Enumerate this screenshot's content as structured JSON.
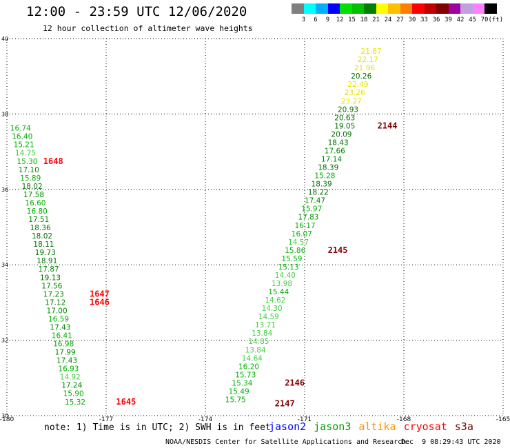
{
  "header": {
    "title": "12:00 - 23:59 UTC 12/06/2020",
    "subtitle": "12 hour collection of altimeter wave heights"
  },
  "colorbar": {
    "colors": [
      "#7f7f7f",
      "#00ffff",
      "#00b0ff",
      "#0000ff",
      "#00e000",
      "#00c000",
      "#008000",
      "#ffff00",
      "#ffc000",
      "#ff8000",
      "#ff0000",
      "#c00000",
      "#800000",
      "#a000a0",
      "#c0a0e0",
      "#ff80ff",
      "#000000"
    ],
    "labels": [
      "3",
      "6",
      "9",
      "12",
      "15",
      "18",
      "21",
      "24",
      "27",
      "30",
      "33",
      "36",
      "39",
      "42",
      "45",
      "70"
    ],
    "unit": "(ft)"
  },
  "chart_data": {
    "type": "scatter",
    "xlim": [
      -180,
      -165
    ],
    "ylim": [
      30,
      40
    ],
    "x_ticks": [
      "-180",
      "-177",
      "-174",
      "-171",
      "-168",
      "-165"
    ],
    "y_ticks": [
      "30",
      "32",
      "34",
      "36",
      "38",
      "40"
    ],
    "grid": true,
    "points": [
      {
        "x": -169.3,
        "y": 39.67,
        "v": "21.87",
        "c": "#e8e000"
      },
      {
        "x": -169.4,
        "y": 39.45,
        "v": "22.17",
        "c": "#e8e000"
      },
      {
        "x": -169.5,
        "y": 39.23,
        "v": "21.96",
        "c": "#e8e000"
      },
      {
        "x": -169.6,
        "y": 39.01,
        "v": "20.26",
        "c": "#007000"
      },
      {
        "x": -169.7,
        "y": 38.79,
        "v": "22.49",
        "c": "#e8e000"
      },
      {
        "x": -169.8,
        "y": 38.57,
        "v": "23.26",
        "c": "#e8e000"
      },
      {
        "x": -169.9,
        "y": 38.35,
        "v": "23.27",
        "c": "#e8e000"
      },
      {
        "x": -170.0,
        "y": 38.13,
        "v": "20.93",
        "c": "#007000"
      },
      {
        "x": -170.1,
        "y": 37.91,
        "v": "20.63",
        "c": "#007000"
      },
      {
        "x": -170.1,
        "y": 37.69,
        "v": "19.05",
        "c": "#007000"
      },
      {
        "x": -170.2,
        "y": 37.47,
        "v": "20.09",
        "c": "#007000"
      },
      {
        "x": -170.3,
        "y": 37.25,
        "v": "18.43",
        "c": "#007000"
      },
      {
        "x": -170.4,
        "y": 37.03,
        "v": "17.66",
        "c": "#008800"
      },
      {
        "x": -170.5,
        "y": 36.81,
        "v": "17.14",
        "c": "#008800"
      },
      {
        "x": -170.6,
        "y": 36.59,
        "v": "18.39",
        "c": "#007000"
      },
      {
        "x": -170.7,
        "y": 36.37,
        "v": "15.28",
        "c": "#00b000"
      },
      {
        "x": -170.8,
        "y": 36.15,
        "v": "18.39",
        "c": "#007000"
      },
      {
        "x": -170.9,
        "y": 35.93,
        "v": "18.22",
        "c": "#007000"
      },
      {
        "x": -171.0,
        "y": 35.71,
        "v": "17.47",
        "c": "#008800"
      },
      {
        "x": -171.1,
        "y": 35.49,
        "v": "15.97",
        "c": "#00b000"
      },
      {
        "x": -171.2,
        "y": 35.27,
        "v": "17.83",
        "c": "#008800"
      },
      {
        "x": -171.3,
        "y": 35.05,
        "v": "16.17",
        "c": "#00b000"
      },
      {
        "x": -171.4,
        "y": 34.83,
        "v": "16.07",
        "c": "#00b000"
      },
      {
        "x": -171.5,
        "y": 34.61,
        "v": "14.57",
        "c": "#40d040"
      },
      {
        "x": -171.6,
        "y": 34.39,
        "v": "15.86",
        "c": "#00b000"
      },
      {
        "x": -171.7,
        "y": 34.17,
        "v": "15.59",
        "c": "#00b000"
      },
      {
        "x": -171.8,
        "y": 33.95,
        "v": "15.13",
        "c": "#00b000"
      },
      {
        "x": -171.9,
        "y": 33.73,
        "v": "14.40",
        "c": "#40d040"
      },
      {
        "x": -172.0,
        "y": 33.51,
        "v": "13.98",
        "c": "#40d040"
      },
      {
        "x": -172.1,
        "y": 33.29,
        "v": "15.44",
        "c": "#00b000"
      },
      {
        "x": -172.2,
        "y": 33.07,
        "v": "14.62",
        "c": "#40d040"
      },
      {
        "x": -172.3,
        "y": 32.85,
        "v": "14.30",
        "c": "#40d040"
      },
      {
        "x": -172.4,
        "y": 32.63,
        "v": "14.59",
        "c": "#40d040"
      },
      {
        "x": -172.5,
        "y": 32.41,
        "v": "13.71",
        "c": "#40d040"
      },
      {
        "x": -172.6,
        "y": 32.19,
        "v": "13.84",
        "c": "#40d040"
      },
      {
        "x": -172.7,
        "y": 31.97,
        "v": "14.85",
        "c": "#40d040"
      },
      {
        "x": -172.8,
        "y": 31.75,
        "v": "13.84",
        "c": "#40d040"
      },
      {
        "x": -172.9,
        "y": 31.53,
        "v": "14.64",
        "c": "#40d040"
      },
      {
        "x": -173.0,
        "y": 31.31,
        "v": "16.20",
        "c": "#00b000"
      },
      {
        "x": -173.1,
        "y": 31.09,
        "v": "15.73",
        "c": "#00b000"
      },
      {
        "x": -173.2,
        "y": 30.87,
        "v": "15.34",
        "c": "#00b000"
      },
      {
        "x": -173.3,
        "y": 30.65,
        "v": "15.49",
        "c": "#00b000"
      },
      {
        "x": -173.4,
        "y": 30.43,
        "v": "15.75",
        "c": "#00b000"
      },
      {
        "x": -179.9,
        "y": 37.63,
        "v": "16.74",
        "c": "#00b000"
      },
      {
        "x": -179.85,
        "y": 37.41,
        "v": "16.40",
        "c": "#00b000"
      },
      {
        "x": -179.8,
        "y": 37.19,
        "v": "15.21",
        "c": "#00b000"
      },
      {
        "x": -179.75,
        "y": 36.97,
        "v": "14.75",
        "c": "#40d040"
      },
      {
        "x": -179.7,
        "y": 36.75,
        "v": "15.30",
        "c": "#00b000"
      },
      {
        "x": -179.65,
        "y": 36.53,
        "v": "17.10",
        "c": "#008800"
      },
      {
        "x": -179.6,
        "y": 36.31,
        "v": "15.89",
        "c": "#00b000"
      },
      {
        "x": -179.55,
        "y": 36.09,
        "v": "18.02",
        "c": "#007000"
      },
      {
        "x": -179.5,
        "y": 35.87,
        "v": "17.58",
        "c": "#008800"
      },
      {
        "x": -179.45,
        "y": 35.65,
        "v": "16.60",
        "c": "#00b000"
      },
      {
        "x": -179.4,
        "y": 35.43,
        "v": "16.80",
        "c": "#00b000"
      },
      {
        "x": -179.35,
        "y": 35.21,
        "v": "17.51",
        "c": "#008800"
      },
      {
        "x": -179.3,
        "y": 34.99,
        "v": "18.36",
        "c": "#007000"
      },
      {
        "x": -179.25,
        "y": 34.77,
        "v": "18.02",
        "c": "#007000"
      },
      {
        "x": -179.2,
        "y": 34.55,
        "v": "18.11",
        "c": "#007000"
      },
      {
        "x": -179.15,
        "y": 34.33,
        "v": "19.73",
        "c": "#007000"
      },
      {
        "x": -179.1,
        "y": 34.11,
        "v": "18.91",
        "c": "#007000"
      },
      {
        "x": -179.05,
        "y": 33.89,
        "v": "17.87",
        "c": "#008800"
      },
      {
        "x": -179.0,
        "y": 33.67,
        "v": "19.13",
        "c": "#007000"
      },
      {
        "x": -178.95,
        "y": 33.45,
        "v": "17.56",
        "c": "#008800"
      },
      {
        "x": -178.9,
        "y": 33.23,
        "v": "17.23",
        "c": "#008800"
      },
      {
        "x": -178.85,
        "y": 33.01,
        "v": "17.12",
        "c": "#008800"
      },
      {
        "x": -178.8,
        "y": 32.79,
        "v": "17.00",
        "c": "#008800"
      },
      {
        "x": -178.75,
        "y": 32.57,
        "v": "16.59",
        "c": "#00b000"
      },
      {
        "x": -178.7,
        "y": 32.35,
        "v": "17.43",
        "c": "#008800"
      },
      {
        "x": -178.65,
        "y": 32.13,
        "v": "16.41",
        "c": "#00b000"
      },
      {
        "x": -178.6,
        "y": 31.91,
        "v": "16.98",
        "c": "#00b000"
      },
      {
        "x": -178.55,
        "y": 31.69,
        "v": "17.99",
        "c": "#008800"
      },
      {
        "x": -178.5,
        "y": 31.47,
        "v": "17.43",
        "c": "#008800"
      },
      {
        "x": -178.45,
        "y": 31.25,
        "v": "16.93",
        "c": "#00b000"
      },
      {
        "x": -178.4,
        "y": 31.03,
        "v": "14.92",
        "c": "#40d040"
      },
      {
        "x": -178.35,
        "y": 30.81,
        "v": "17.24",
        "c": "#008800"
      },
      {
        "x": -178.3,
        "y": 30.59,
        "v": "15.90",
        "c": "#00b000"
      },
      {
        "x": -178.25,
        "y": 30.37,
        "v": "15.32",
        "c": "#00b000"
      }
    ],
    "time_labels": [
      {
        "x": -168.8,
        "y": 37.69,
        "t": "2144",
        "c": "#800000"
      },
      {
        "x": -170.3,
        "y": 34.39,
        "t": "2145",
        "c": "#800000"
      },
      {
        "x": -171.6,
        "y": 30.87,
        "t": "2146",
        "c": "#800000"
      },
      {
        "x": -171.9,
        "y": 30.32,
        "t": "2147",
        "c": "#800000"
      },
      {
        "x": -178.9,
        "y": 36.75,
        "t": "1648",
        "c": "#ff0000"
      },
      {
        "x": -177.5,
        "y": 33.23,
        "t": "1647",
        "c": "#ff0000"
      },
      {
        "x": -177.5,
        "y": 33.01,
        "t": "1646",
        "c": "#ff0000"
      },
      {
        "x": -176.7,
        "y": 30.37,
        "t": "1645",
        "c": "#ff0000"
      }
    ]
  },
  "footer": {
    "note": "note: 1) Time is in UTC; 2) SWH is in feet",
    "satellites": [
      {
        "name": "jason2",
        "color": "#0000ff"
      },
      {
        "name": "jason3",
        "color": "#00a000"
      },
      {
        "name": "altika",
        "color": "#ff9000"
      },
      {
        "name": "cryosat",
        "color": "#ff0000"
      },
      {
        "name": "s3a",
        "color": "#800000"
      }
    ],
    "credit": "NOAA/NESDIS Center for Satellite Applications and Research",
    "timestamp": "Dec  9 08:29:43 UTC 2020"
  }
}
